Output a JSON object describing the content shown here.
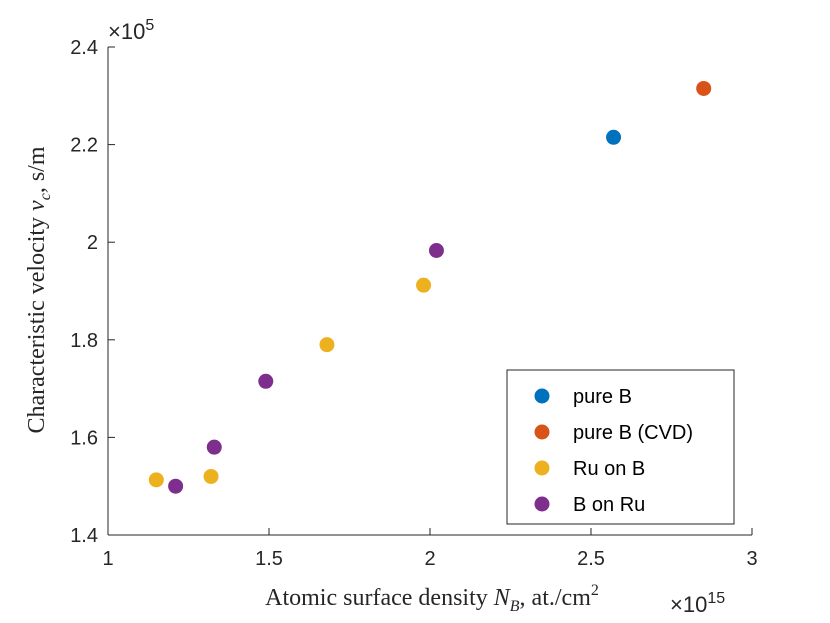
{
  "chart_data": {
    "type": "scatter",
    "xlabel": {
      "main": "Atomic surface density ",
      "var": "N",
      "sub": "B",
      "rest": ", at./cm",
      "sup": "2"
    },
    "ylabel": {
      "main": "Characteristic velocity ",
      "var": "v",
      "sub": "c",
      "rest": ", s/m"
    },
    "x_multiplier": {
      "base": "×10",
      "exp": "15"
    },
    "y_multiplier": {
      "base": "×10",
      "exp": "5"
    },
    "xlim": [
      1,
      3
    ],
    "ylim": [
      1.4,
      2.4
    ],
    "x_ticks": [
      1,
      1.5,
      2,
      2.5,
      3
    ],
    "x_tick_labels": [
      "1",
      "1.5",
      "2",
      "2.5",
      "3"
    ],
    "y_ticks": [
      1.4,
      1.6,
      1.8,
      2.0,
      2.2,
      2.4
    ],
    "y_tick_labels": [
      "1.4",
      "1.6",
      "1.8",
      "2",
      "2.2",
      "2.4"
    ],
    "grid": false,
    "legend_position": "bottom-right",
    "series": [
      {
        "name": "pure B",
        "color": "#0072BD",
        "points": [
          [
            2.57,
            2.215
          ]
        ]
      },
      {
        "name": "pure B (CVD)",
        "color": "#D95319",
        "points": [
          [
            2.85,
            2.315
          ]
        ]
      },
      {
        "name": "Ru on B",
        "color": "#EDB120",
        "points": [
          [
            1.15,
            1.513
          ],
          [
            1.32,
            1.52
          ],
          [
            1.68,
            1.79
          ],
          [
            1.98,
            1.912
          ]
        ]
      },
      {
        "name": "B on Ru",
        "color": "#7E2F8E",
        "points": [
          [
            1.21,
            1.5
          ],
          [
            1.33,
            1.58
          ],
          [
            1.49,
            1.715
          ],
          [
            2.02,
            1.983
          ]
        ]
      }
    ]
  }
}
